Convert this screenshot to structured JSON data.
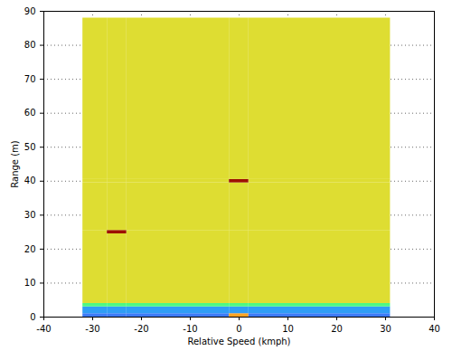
{
  "chart_data": {
    "type": "heatmap",
    "xlabel": "Relative Speed (kmph)",
    "ylabel": "Range (m)",
    "xlim": [
      -40,
      40
    ],
    "ylim": [
      0,
      90
    ],
    "xticks": [
      -40,
      -30,
      -20,
      -10,
      0,
      10,
      20,
      30,
      40
    ],
    "yticks": [
      0,
      10,
      20,
      30,
      40,
      50,
      60,
      70,
      80,
      90
    ],
    "grid": true,
    "x_edges": [
      -32,
      -27,
      -23,
      -2,
      2,
      31
    ],
    "y_edges": [
      0,
      1,
      3,
      4,
      24.5,
      25.5,
      39.5,
      40.5,
      88
    ],
    "cells": [
      [
        0.15,
        0.15,
        0.15,
        0.7,
        0.15
      ],
      [
        0.2,
        0.2,
        0.2,
        0.2,
        0.2
      ],
      [
        0.4,
        0.4,
        0.4,
        0.4,
        0.4
      ],
      [
        0.6,
        0.6,
        0.6,
        0.6,
        0.6
      ],
      [
        0.6,
        0.95,
        0.6,
        0.6,
        0.6
      ],
      [
        0.6,
        0.6,
        0.6,
        0.6,
        0.6
      ],
      [
        0.6,
        0.6,
        0.6,
        0.95,
        0.6
      ],
      [
        0.6,
        0.6,
        0.6,
        0.6,
        0.6
      ]
    ],
    "zlim": [
      0,
      1
    ]
  }
}
